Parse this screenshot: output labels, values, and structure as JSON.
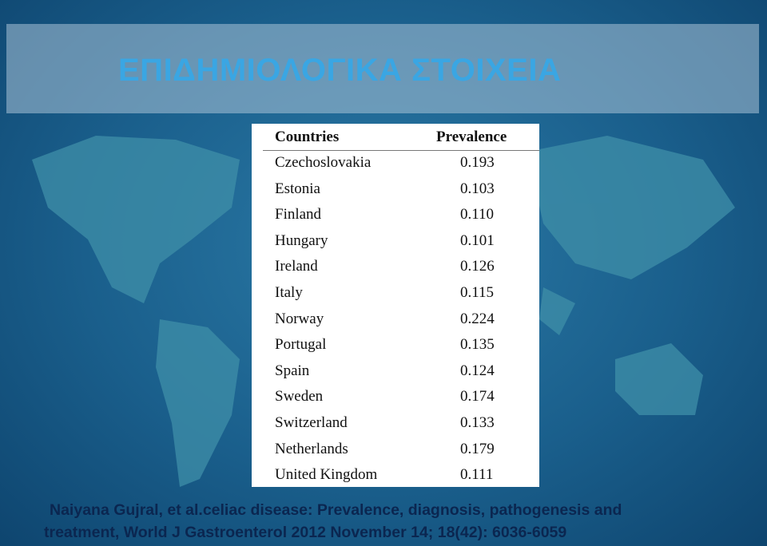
{
  "header": {
    "title": "ΕΠΙΔΗΜΙΟΛΟΓΙΚΑ ΣΤΟΙΧΕΙΑ"
  },
  "table": {
    "columns": [
      "Countries",
      "Prevalence"
    ],
    "rows": [
      [
        "Czechoslovakia",
        "0.193"
      ],
      [
        "Estonia",
        "0.103"
      ],
      [
        "Finland",
        "0.110"
      ],
      [
        "Hungary",
        "0.101"
      ],
      [
        "Ireland",
        "0.126"
      ],
      [
        "Italy",
        "0.115"
      ],
      [
        "Norway",
        "0.224"
      ],
      [
        "Portugal",
        "0.135"
      ],
      [
        "Spain",
        "0.124"
      ],
      [
        "Sweden",
        "0.174"
      ],
      [
        "Switzerland",
        "0.133"
      ],
      [
        "Netherlands",
        "0.179"
      ],
      [
        "United Kingdom",
        "0.111"
      ]
    ]
  },
  "citation": {
    "lines": [
      "Naiyana Gujral, et al.celiac disease: Prevalence, diagnosis, pathogenesis and",
      "treatment, World J Gastroenterol 2012 November 14; 18(42): 6036-6059"
    ]
  }
}
